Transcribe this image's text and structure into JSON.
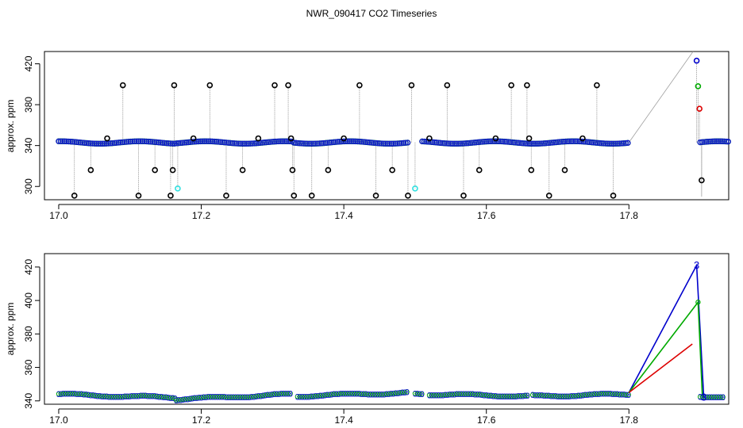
{
  "title": "NWR_090417  CO2 Timeseries",
  "chart_data": [
    {
      "type": "scatter",
      "ylabel": "approx. ppm",
      "xlim": [
        16.98,
        17.94
      ],
      "ylim": [
        287,
        432
      ],
      "xticks": [
        "17.0",
        "17.2",
        "17.4",
        "17.6",
        "17.8"
      ],
      "yticks": [
        "300",
        "340",
        "380",
        "420"
      ],
      "baseline": 343,
      "baseline_segments": [
        [
          17.0,
          17.165
        ],
        [
          17.165,
          17.33
        ],
        [
          17.33,
          17.49
        ],
        [
          17.51,
          17.8
        ],
        [
          17.9,
          17.94
        ]
      ],
      "series": [
        {
          "color": "#000000",
          "x": [
            17.022,
            17.045,
            17.068,
            17.09,
            17.112,
            17.135,
            17.157,
            17.16,
            17.162,
            17.189,
            17.212,
            17.235,
            17.258,
            17.28,
            17.303,
            17.322,
            17.326,
            17.328,
            17.33,
            17.355,
            17.378,
            17.4,
            17.422,
            17.445,
            17.468,
            17.49,
            17.495,
            17.52,
            17.545,
            17.568,
            17.59,
            17.613,
            17.635,
            17.657,
            17.66,
            17.663,
            17.688,
            17.71,
            17.735,
            17.755,
            17.778,
            17.902
          ],
          "values": [
            291,
            316,
            347,
            399,
            291,
            316,
            291,
            316,
            399,
            347,
            399,
            291,
            316,
            347,
            399,
            399,
            347,
            316,
            291,
            291,
            316,
            347,
            399,
            291,
            316,
            291,
            399,
            347,
            399,
            291,
            316,
            347,
            399,
            399,
            347,
            316,
            291,
            316,
            347,
            399,
            291,
            306
          ]
        },
        {
          "color": "#33e0e0",
          "x": [
            17.167,
            17.5
          ],
          "values": [
            298,
            298
          ]
        },
        {
          "color": "#0000cc",
          "x": [
            17.895
          ],
          "values": [
            423
          ]
        },
        {
          "color": "#00aa00",
          "x": [
            17.897
          ],
          "values": [
            398
          ]
        },
        {
          "color": "#dd0000",
          "x": [
            17.899
          ],
          "values": [
            376
          ]
        }
      ],
      "spike_lines": [
        {
          "x": [
            17.8,
            17.89
          ],
          "values": [
            343,
            432
          ]
        },
        {
          "x": [
            17.902,
            17.902
          ],
          "values": [
            343,
            290
          ]
        }
      ]
    },
    {
      "type": "line",
      "ylabel": "approx. ppm",
      "xlim": [
        16.98,
        17.94
      ],
      "ylim": [
        338,
        428
      ],
      "xticks": [
        "17.0",
        "17.2",
        "17.4",
        "17.6",
        "17.8"
      ],
      "yticks": [
        "340",
        "360",
        "380",
        "400",
        "420"
      ],
      "point_label": "3",
      "baseline_segments": [
        {
          "x": [
            17.0,
            17.165
          ],
          "values": [
            344,
            342
          ]
        },
        {
          "x": [
            17.165,
            17.325
          ],
          "values": [
            341,
            344
          ]
        },
        {
          "x": [
            17.335,
            17.49
          ],
          "values": [
            343,
            345
          ]
        },
        {
          "x": [
            17.5,
            17.51
          ],
          "values": [
            344,
            344
          ]
        },
        {
          "x": [
            17.52,
            17.66
          ],
          "values": [
            344,
            343
          ]
        },
        {
          "x": [
            17.665,
            17.8
          ],
          "values": [
            343,
            344
          ]
        },
        {
          "x": [
            17.9,
            17.935
          ],
          "values": [
            343,
            342
          ]
        }
      ],
      "series": [
        {
          "color": "#0000cc",
          "x": [
            17.8,
            17.895,
            17.905
          ],
          "values": [
            345,
            421,
            342
          ]
        },
        {
          "color": "#00aa00",
          "x": [
            17.8,
            17.897,
            17.903
          ],
          "values": [
            345,
            399,
            343
          ]
        },
        {
          "color": "#dd0000",
          "x": [
            17.8,
            17.889
          ],
          "values": [
            345,
            374
          ]
        }
      ],
      "labelled_points": [
        {
          "x": 17.895,
          "value": 421,
          "color": "#0000cc"
        },
        {
          "x": 17.897,
          "value": 399,
          "color": "#00aa00"
        },
        {
          "x": 17.905,
          "value": 342,
          "color": "#0000cc"
        }
      ]
    }
  ]
}
